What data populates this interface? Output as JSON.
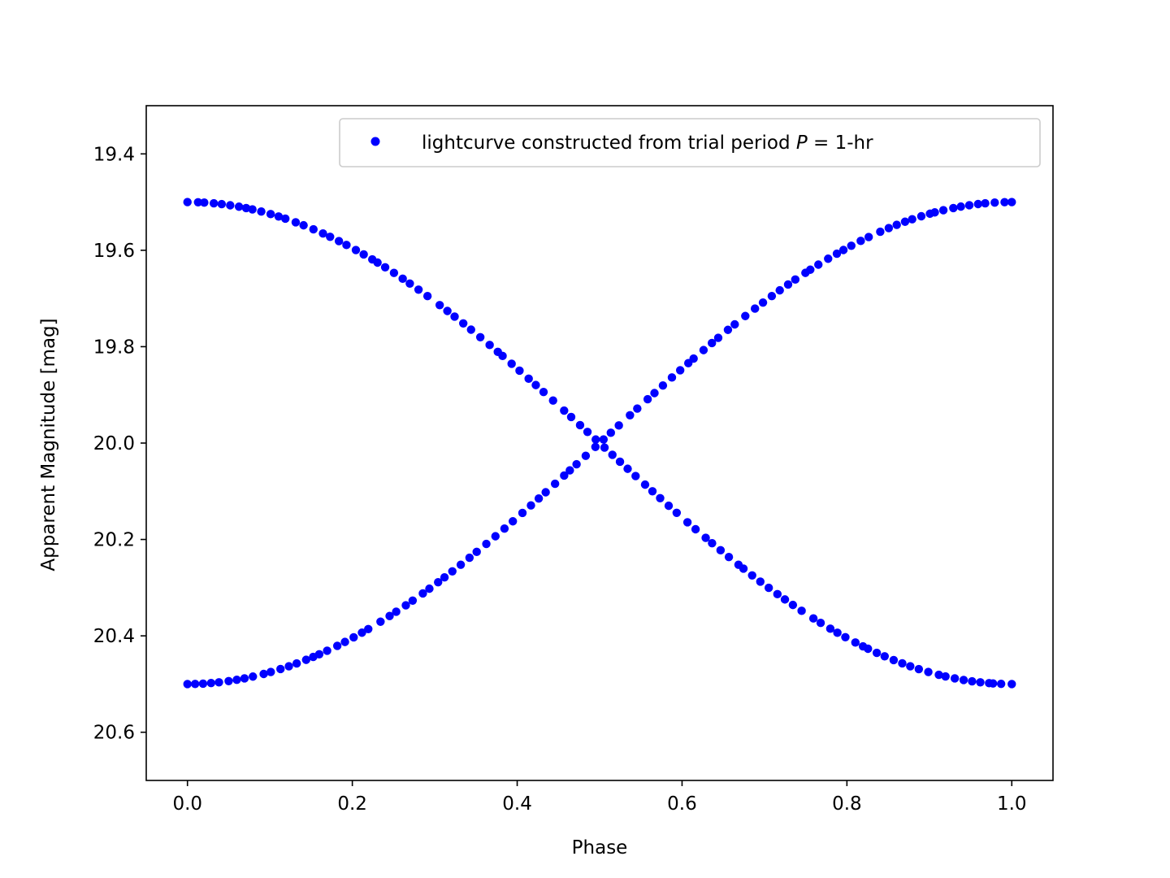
{
  "chart_data": {
    "type": "scatter",
    "xlabel": "Phase",
    "ylabel": "Apparent Magnitude [mag]",
    "xlim": [
      -0.05,
      1.05
    ],
    "ylim": [
      20.7,
      19.3
    ],
    "y_inverted": true,
    "xticks": [
      "0.0",
      "0.2",
      "0.4",
      "0.6",
      "0.8",
      "1.0"
    ],
    "yticks": [
      "19.4",
      "19.6",
      "19.8",
      "20.0",
      "20.2",
      "20.4",
      "20.6"
    ],
    "grid": false,
    "legend_position": "top-right",
    "series": [
      {
        "name": "lightcurve constructed from trial period P = 1-hr",
        "legend_prefix": "lightcurve constructed from trial period ",
        "legend_var": "P",
        "legend_suffix": " = 1-hr",
        "color": "#0000ff",
        "marker": "circle",
        "branches": [
          {
            "mag_mean": 20.0,
            "amplitude": 0.5,
            "phase_sign": 1
          },
          {
            "mag_mean": 20.0,
            "amplitude": -0.5,
            "phase_sign": 1
          }
        ],
        "x_range": [
          0.0,
          1.0
        ],
        "points_per_branch": 100
      }
    ]
  }
}
